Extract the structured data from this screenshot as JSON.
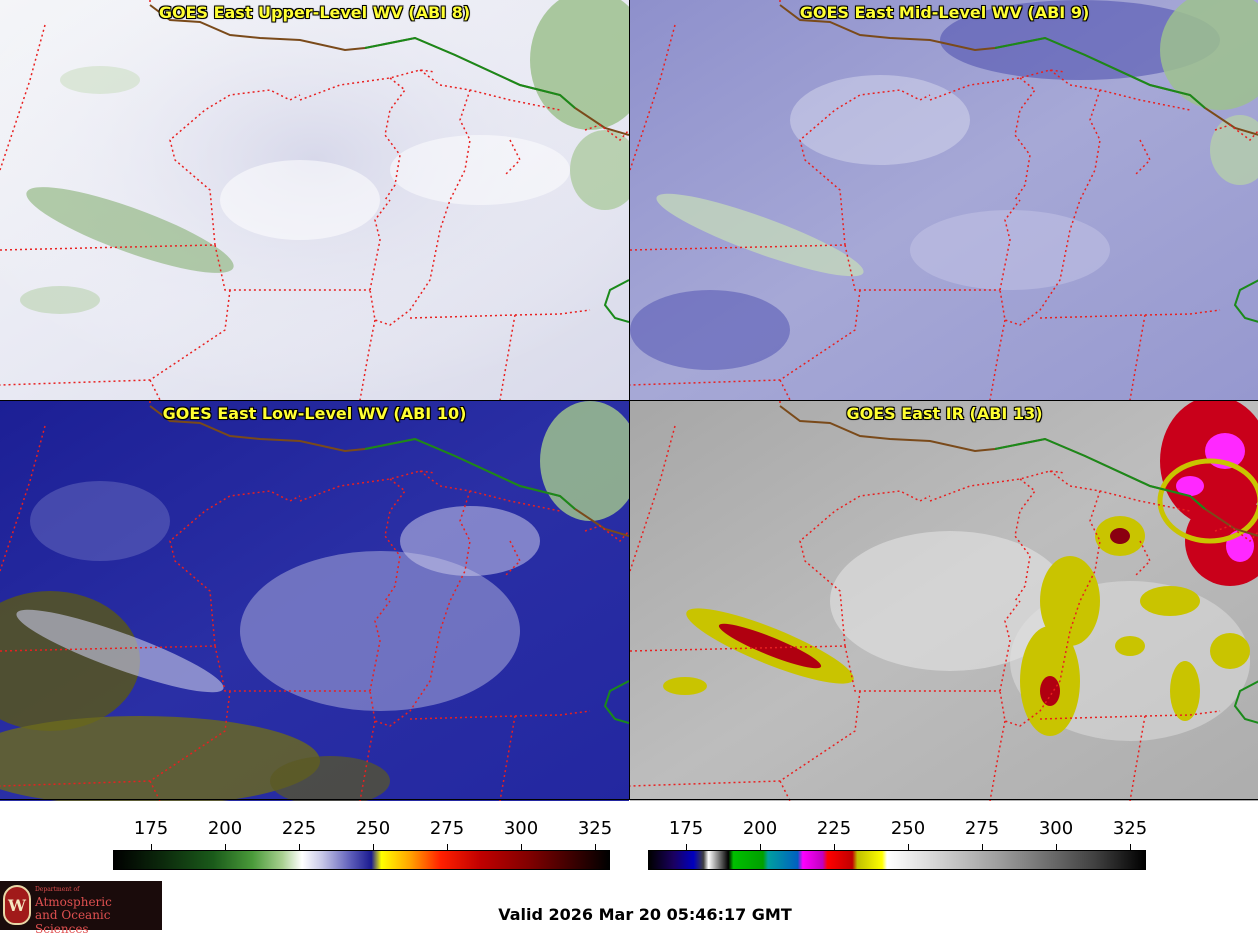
{
  "panels": [
    {
      "title": "GOES East Upper-Level WV (ABI 8)"
    },
    {
      "title": "GOES East Mid-Level WV (ABI 9)"
    },
    {
      "title": "GOES East Low-Level WV (ABI 10)"
    },
    {
      "title": "GOES East IR (ABI 13)"
    }
  ],
  "colorbars": {
    "wv": {
      "ticks": [
        "175",
        "200",
        "225",
        "250",
        "275",
        "300",
        "325"
      ]
    },
    "ir": {
      "ticks": [
        "175",
        "200",
        "225",
        "250",
        "275",
        "300",
        "325"
      ]
    }
  },
  "valid_time": "Valid 2026 Mar 20 05:46:17 GMT",
  "logo": {
    "department": "Department of",
    "line1": "Atmospheric",
    "line2": "and Oceanic Sciences",
    "seal_letter": "W"
  },
  "colors": {
    "title_text": "#ffff33",
    "state_borders": "#e82020",
    "international_border": "#1a8a1a"
  }
}
